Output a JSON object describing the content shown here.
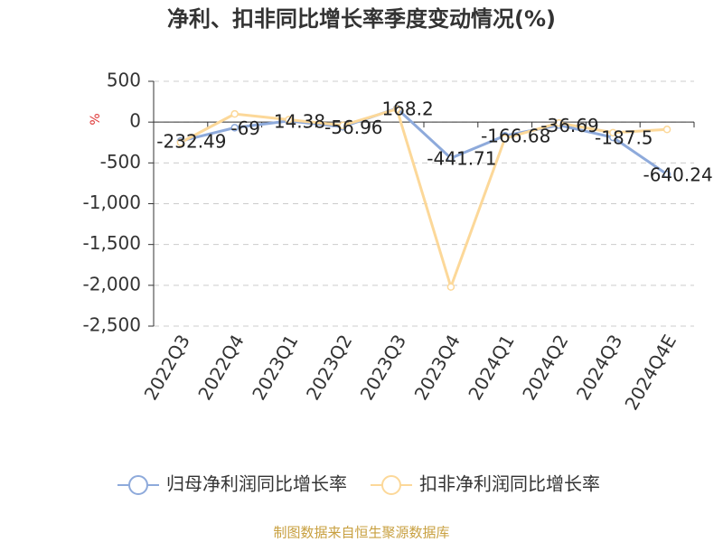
{
  "chart_data": {
    "type": "line",
    "title": "净利、扣非同比增长率季度变动情况(%)",
    "y_label": "%",
    "categories": [
      "2022Q3",
      "2022Q4",
      "2023Q1",
      "2023Q2",
      "2023Q3",
      "2023Q4",
      "2024Q1",
      "2024Q2",
      "2024Q3",
      "2024Q4E"
    ],
    "series": [
      {
        "name": "归母净利润同比增长率",
        "color": "#8eaadb",
        "values": [
          -232.49,
          -69,
          14.38,
          -56.96,
          168.2,
          -441.71,
          -166.68,
          -36.69,
          -187.5,
          -640.24
        ],
        "show_labels": true
      },
      {
        "name": "扣非净利润同比增长率",
        "color": "#fcd899",
        "values": [
          -250,
          100,
          30,
          -40,
          160,
          -2020,
          -200,
          -10,
          -130,
          -90
        ],
        "show_labels": false
      }
    ],
    "ylim": [
      -2500,
      500
    ],
    "yticks": [
      {
        "value": -2500,
        "label": "-2,500"
      },
      {
        "value": -2000,
        "label": "-2,000"
      },
      {
        "value": -1500,
        "label": "-1,500"
      },
      {
        "value": -1000,
        "label": "-1,000"
      },
      -500,
      0,
      500
    ],
    "grid": true,
    "legend": "bottom",
    "source": "制图数据来自恒生聚源数据库"
  }
}
